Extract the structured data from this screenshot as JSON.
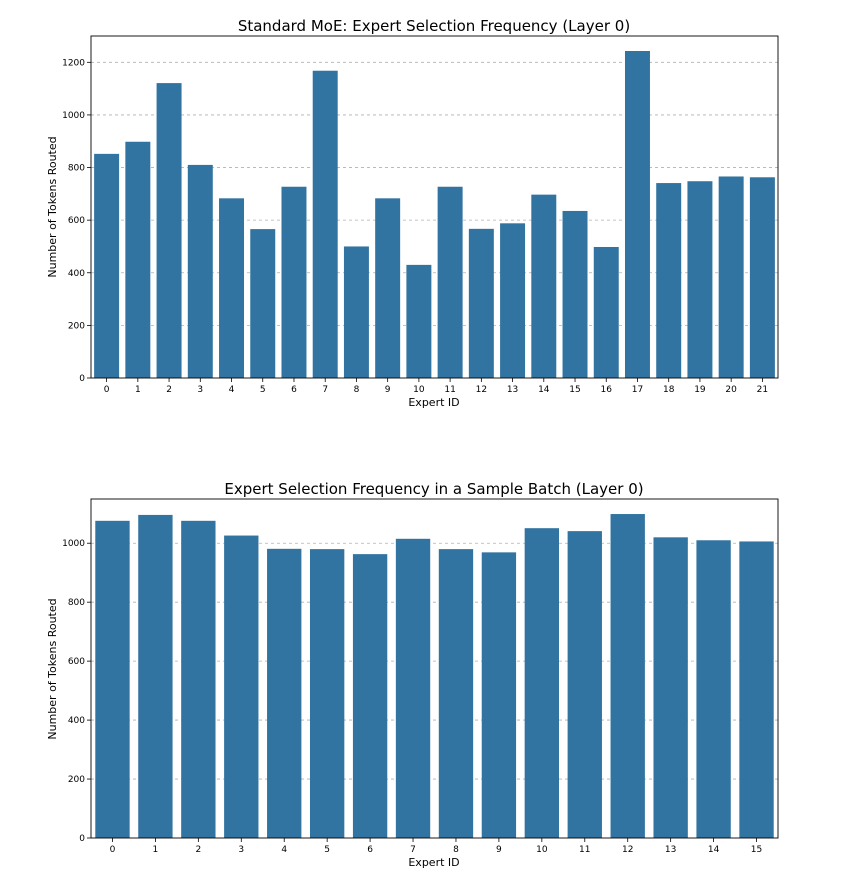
{
  "chart_data": [
    {
      "type": "bar",
      "title": "Standard MoE: Expert Selection Frequency (Layer 0)",
      "xlabel": "Expert ID",
      "ylabel": "Number of Tokens Routed",
      "categories": [
        "0",
        "1",
        "2",
        "3",
        "4",
        "5",
        "6",
        "7",
        "8",
        "9",
        "10",
        "11",
        "12",
        "13",
        "14",
        "15",
        "16",
        "17",
        "18",
        "19",
        "20",
        "21"
      ],
      "values": [
        852,
        898,
        1121,
        810,
        683,
        566,
        727,
        1168,
        500,
        683,
        430,
        727,
        567,
        588,
        697,
        635,
        498,
        1243,
        741,
        748,
        766,
        763
      ],
      "ylim": [
        0,
        1300
      ],
      "yticks": [
        0,
        200,
        400,
        600,
        800,
        1000,
        1200
      ],
      "grid": "y",
      "color": "#3274a1"
    },
    {
      "type": "bar",
      "title": "Expert Selection Frequency in a Sample Batch (Layer 0)",
      "xlabel": "Expert ID",
      "ylabel": "Number of Tokens Routed",
      "categories": [
        "0",
        "1",
        "2",
        "3",
        "4",
        "5",
        "6",
        "7",
        "8",
        "9",
        "10",
        "11",
        "12",
        "13",
        "14",
        "15"
      ],
      "values": [
        1076,
        1096,
        1076,
        1026,
        981,
        980,
        963,
        1015,
        980,
        969,
        1051,
        1041,
        1099,
        1020,
        1010,
        1006
      ],
      "ylim": [
        0,
        1150
      ],
      "yticks": [
        0,
        200,
        400,
        600,
        800,
        1000
      ],
      "grid": "y",
      "color": "#3274a1"
    }
  ]
}
